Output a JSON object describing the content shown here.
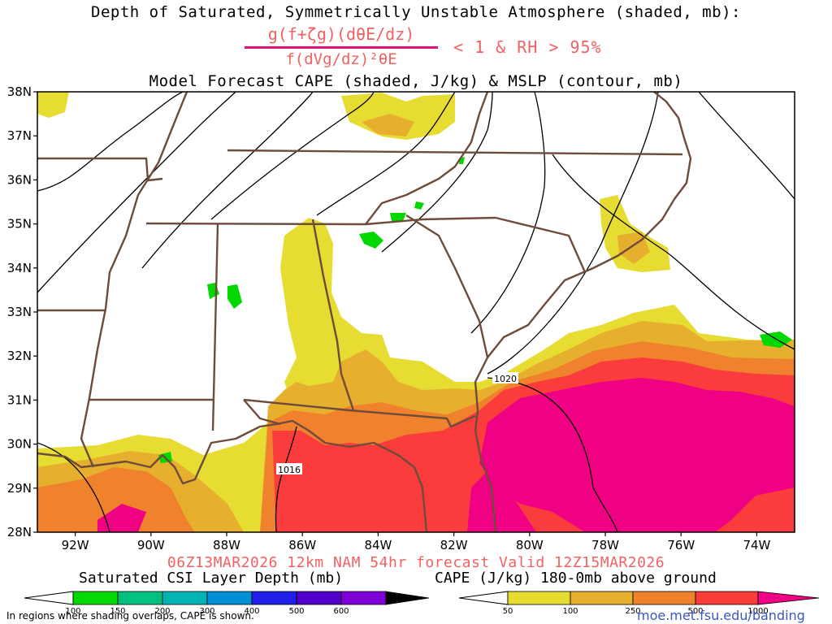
{
  "title": {
    "line1": "Depth of Saturated, Symmetrically Unstable Atmosphere (shaded, mb):",
    "numerator": "g(f+ζg)(dθE/dz)",
    "denominator": "f(dVg/dz)²θE",
    "condition": "< 1 & RH > 95%",
    "line3": "Model Forecast CAPE (shaded, J/kg) & MSLP (contour, mb)"
  },
  "axes": {
    "lat_labels": [
      "38N",
      "37N",
      "36N",
      "35N",
      "34N",
      "33N",
      "32N",
      "31N",
      "30N",
      "29N",
      "28N"
    ],
    "lon_labels": [
      "92W",
      "90W",
      "88W",
      "86W",
      "84W",
      "82W",
      "80W",
      "78W",
      "76W",
      "74W"
    ],
    "lat_range": [
      28,
      38
    ],
    "lon_range": [
      -93,
      -73
    ]
  },
  "isobars": {
    "labels": [
      "1020",
      "1016"
    ]
  },
  "run_info": "06Z13MAR2026 12km NAM 54hr forecast Valid 12Z15MAR2026",
  "colorbars": {
    "csi": {
      "label": "Saturated CSI Layer Depth (mb)",
      "ticks": [
        "100",
        "150",
        "200",
        "300",
        "400",
        "500",
        "600"
      ],
      "colors": [
        "#00d800",
        "#00c080",
        "#00b4b4",
        "#0090d8",
        "#2020e8",
        "#5000c8",
        "#8000d8",
        "#000000"
      ]
    },
    "cape": {
      "label": "CAPE (J/kg) 180-0mb above ground",
      "ticks": [
        "50",
        "100",
        "250",
        "500",
        "1000"
      ],
      "colors": [
        "#e6dc32",
        "#e6af2d",
        "#f0822d",
        "#fa3c3c",
        "#f00082"
      ]
    }
  },
  "footnote": "In regions where shading overlaps, CAPE is shown.",
  "credit": "moe.met.fsu.edu/banding"
}
